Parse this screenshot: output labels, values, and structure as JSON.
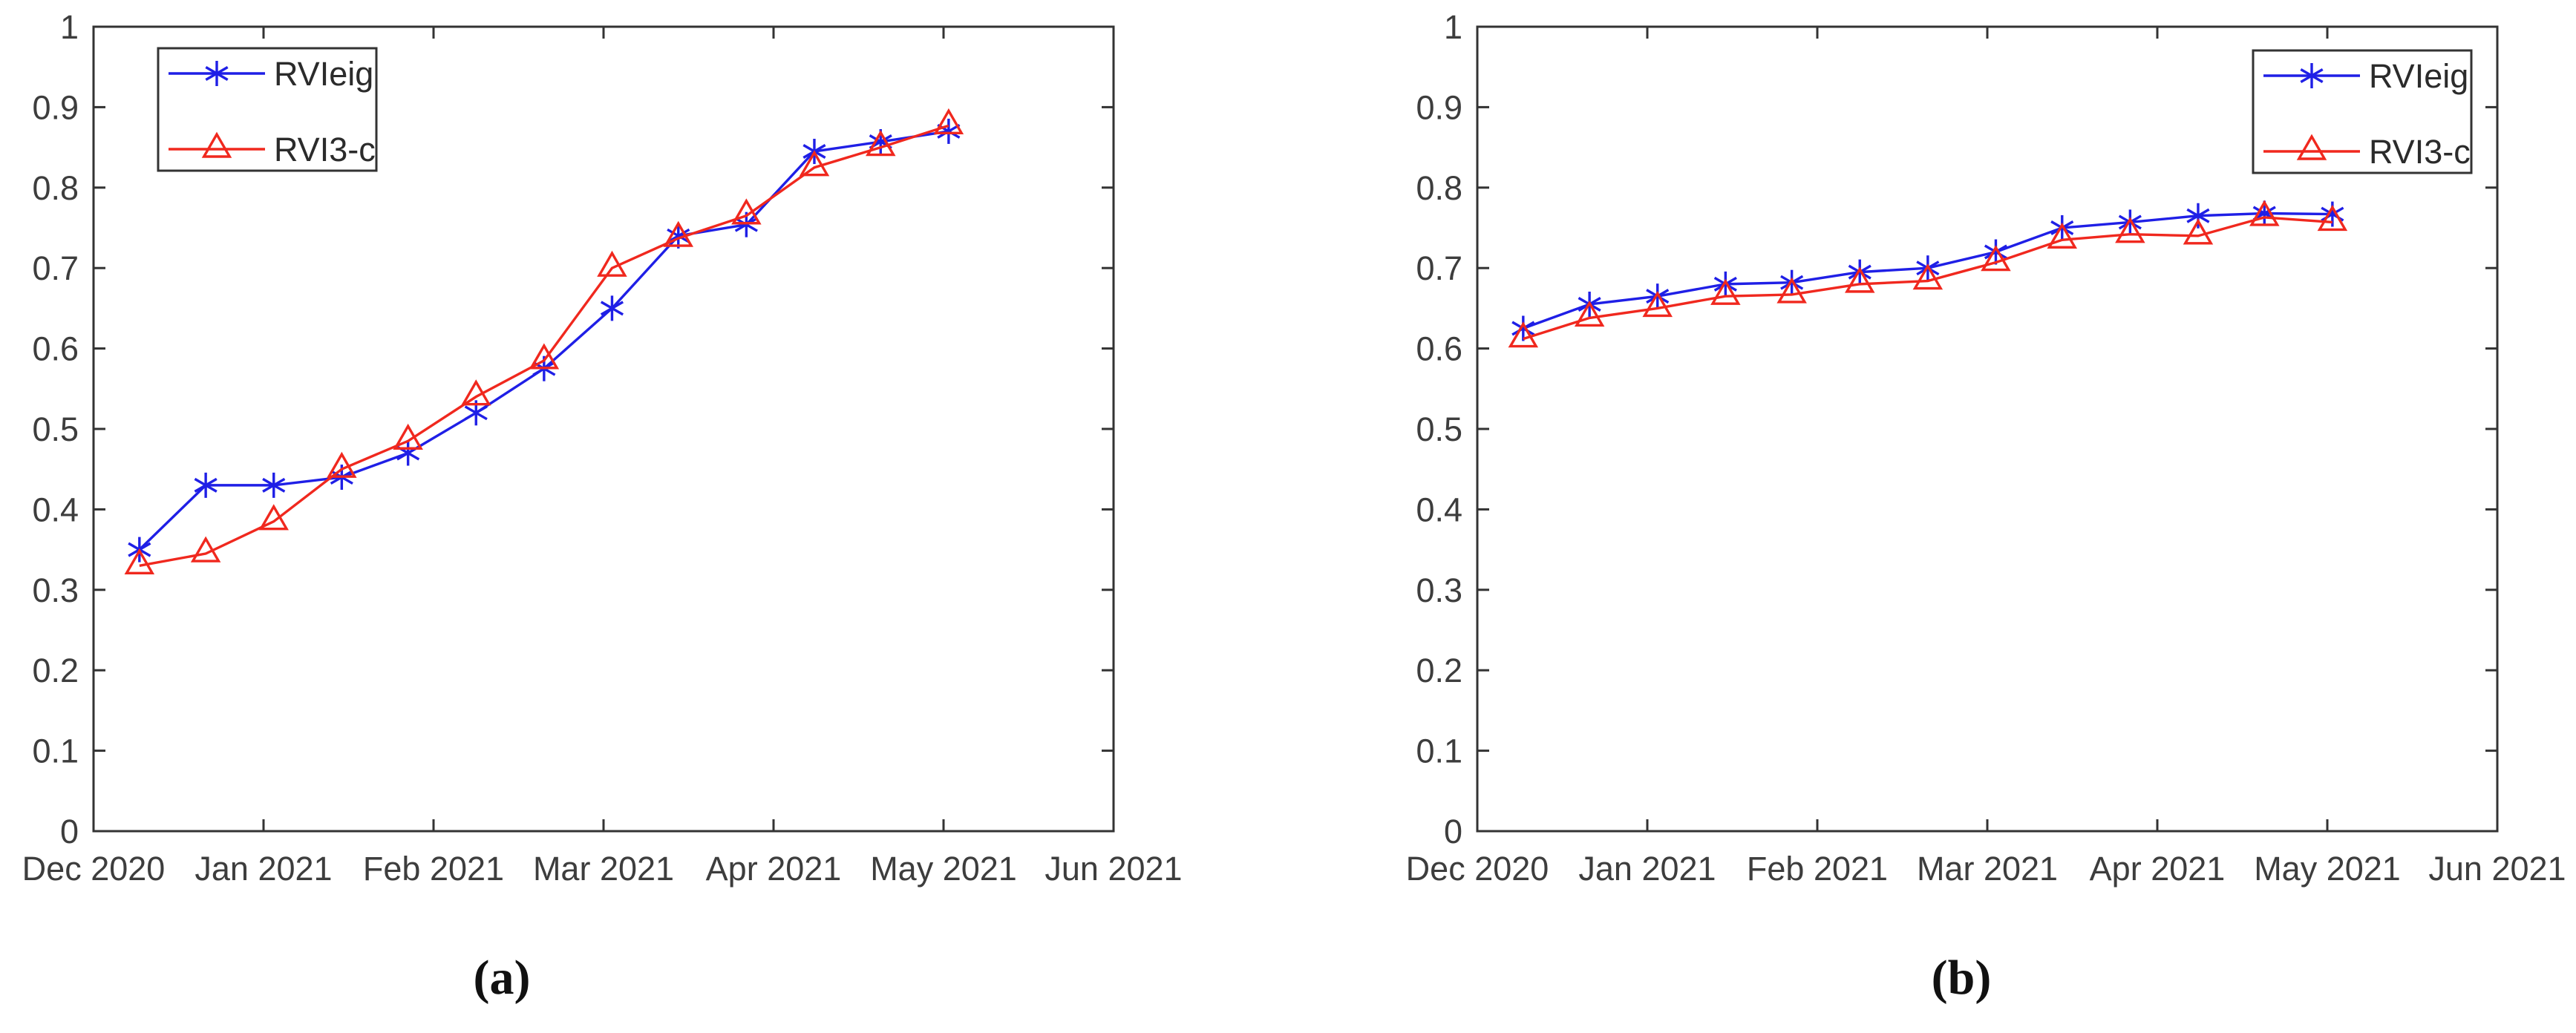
{
  "style": {
    "background": "#ffffff",
    "axis_color": "#333333",
    "tick_label_color": "#3d3d3d",
    "legend_text_color": "#2b2b2b",
    "rvieig_color": "#1f1fe6",
    "rvi3c_color": "#f0281e"
  },
  "panels": [
    {
      "caption": "(a)"
    },
    {
      "caption": "(b)"
    }
  ],
  "chart_data": [
    {
      "type": "line",
      "panel": "a",
      "title": "",
      "xlabel": "",
      "ylabel": "",
      "ylim": [
        0,
        1
      ],
      "grid": false,
      "x_tick_labels": [
        "Dec 2020",
        "Jan 2021",
        "Feb 2021",
        "Mar 2021",
        "Apr 2021",
        "May 2021",
        "Jun 2021"
      ],
      "y_tick_labels": [
        "0",
        "0.1",
        "0.2",
        "0.3",
        "0.4",
        "0.5",
        "0.6",
        "0.7",
        "0.8",
        "0.9",
        "1"
      ],
      "x_months": [
        0.27,
        0.66,
        1.06,
        1.46,
        1.85,
        2.25,
        2.65,
        3.05,
        3.44,
        3.84,
        4.24,
        4.63,
        5.03
      ],
      "series": [
        {
          "name": "RVIeig",
          "marker": "asterisk",
          "color": "#1f1fe6",
          "values": [
            0.35,
            0.43,
            0.43,
            0.44,
            0.47,
            0.52,
            0.575,
            0.65,
            0.74,
            0.754,
            0.845,
            0.857,
            0.87
          ]
        },
        {
          "name": "RVI3-c",
          "marker": "triangle",
          "color": "#f0281e",
          "values": [
            0.33,
            0.345,
            0.385,
            0.45,
            0.485,
            0.54,
            0.585,
            0.7,
            0.737,
            0.765,
            0.825,
            0.85,
            0.877
          ]
        }
      ],
      "legend": {
        "entries": [
          "RVIeig",
          "RVI3-c"
        ],
        "position": "northwest"
      }
    },
    {
      "type": "line",
      "panel": "b",
      "title": "",
      "xlabel": "",
      "ylabel": "",
      "ylim": [
        0,
        1
      ],
      "grid": false,
      "x_tick_labels": [
        "Dec 2020",
        "Jan 2021",
        "Feb 2021",
        "Mar 2021",
        "Apr 2021",
        "May 2021",
        "Jun 2021"
      ],
      "y_tick_labels": [
        "0",
        "0.1",
        "0.2",
        "0.3",
        "0.4",
        "0.5",
        "0.6",
        "0.7",
        "0.8",
        "0.9",
        "1"
      ],
      "x_months": [
        0.27,
        0.66,
        1.06,
        1.46,
        1.85,
        2.25,
        2.65,
        3.05,
        3.44,
        3.84,
        4.24,
        4.63,
        5.03
      ],
      "series": [
        {
          "name": "RVIeig",
          "marker": "asterisk",
          "color": "#1f1fe6",
          "values": [
            0.625,
            0.655,
            0.665,
            0.68,
            0.682,
            0.695,
            0.7,
            0.72,
            0.75,
            0.757,
            0.765,
            0.768,
            0.767
          ]
        },
        {
          "name": "RVI3-c",
          "marker": "triangle",
          "color": "#f0281e",
          "values": [
            0.612,
            0.638,
            0.65,
            0.665,
            0.667,
            0.68,
            0.684,
            0.707,
            0.735,
            0.742,
            0.74,
            0.763,
            0.757
          ]
        }
      ],
      "legend": {
        "entries": [
          "RVIeig",
          "RVI3-c"
        ],
        "position": "northeast"
      }
    }
  ]
}
